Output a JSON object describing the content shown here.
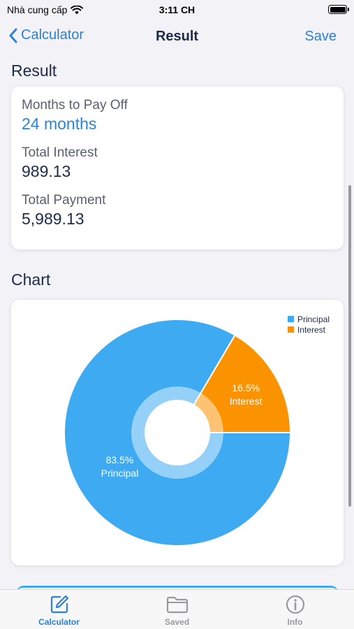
{
  "status_bar": {
    "carrier": "Nhà cung cấp",
    "time": "3:11 CH"
  },
  "nav": {
    "back_label": "Calculator",
    "title": "Result",
    "save_label": "Save"
  },
  "result_section": {
    "title": "Result",
    "items": [
      {
        "label": "Months to Pay Off",
        "value": "24 months"
      },
      {
        "label": "Total Interest",
        "value": "989.13"
      },
      {
        "label": "Total Payment",
        "value": "5,989.13"
      }
    ]
  },
  "chart_section": {
    "title": "Chart"
  },
  "chart_data": {
    "type": "pie",
    "style": "donut",
    "legend_position": "top-right",
    "categories": [
      "Principal",
      "Interest"
    ],
    "values": [
      83.5,
      16.5
    ],
    "labels": [
      "83.5%",
      "16.5%"
    ],
    "colors": [
      "#3daaf2",
      "#fb9300"
    ]
  },
  "tabs": [
    {
      "label": "Calculator",
      "icon": "edit-icon",
      "active": true
    },
    {
      "label": "Saved",
      "icon": "folder-icon",
      "active": false
    },
    {
      "label": "Info",
      "icon": "info-icon",
      "active": false
    }
  ],
  "colors": {
    "accent": "#2a82d9",
    "principal": "#3daaf2",
    "interest": "#fb9300"
  }
}
